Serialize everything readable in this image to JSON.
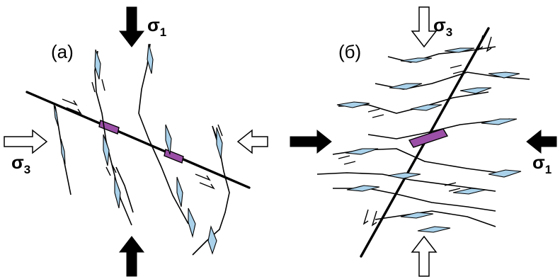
{
  "panels": [
    {
      "label": "(а)"
    },
    {
      "label": "(б)"
    }
  ],
  "stress_labels": {
    "sigma_symbol": "σ",
    "sigma1_sub": "1",
    "sigma3_sub": "3"
  },
  "colors": {
    "vein_fill": "#a9d1ea",
    "jog_fill": "#9b4fa6",
    "arrow_black": "#000000",
    "arrow_white": "#ffffff"
  }
}
